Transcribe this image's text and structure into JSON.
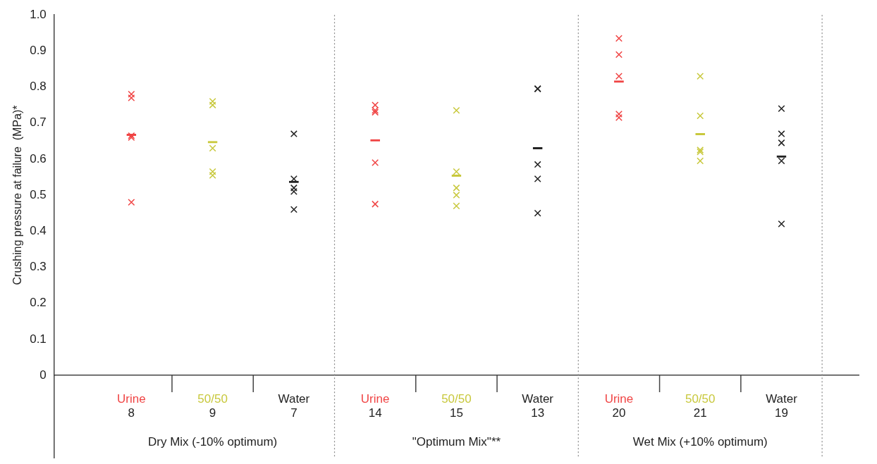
{
  "chart_data": {
    "type": "scatter",
    "ylabel": "Crushing pressure at failure  (MPa)*",
    "categories": [
      "8",
      "9",
      "7",
      "14",
      "15",
      "13",
      "20",
      "21",
      "19"
    ],
    "ylim": [
      0,
      1
    ],
    "yticks": [
      0,
      0.1,
      0.2,
      0.3,
      0.4,
      0.5,
      0.6,
      0.7,
      0.8,
      0.9,
      {
        "value": 1,
        "label": "1.0"
      }
    ],
    "grid": false,
    "annotations": [
      "Dry Mix (-10% optimum)",
      "\"Optimum Mix\"**",
      "Wet Mix (+10% optimum)"
    ],
    "series": [
      {
        "name": "Urine",
        "color": "#f04444",
        "marker": "cross",
        "x": [
          "8",
          "8",
          "8",
          "8",
          "8",
          "14",
          "14",
          "14",
          "14",
          "14",
          "20",
          "20",
          "20",
          "20",
          "20"
        ],
        "values": [
          0.78,
          0.77,
          0.665,
          0.66,
          0.48,
          0.75,
          0.735,
          0.73,
          0.59,
          0.475,
          0.935,
          0.89,
          0.83,
          0.725,
          0.715
        ]
      },
      {
        "name": "50/50",
        "color": "#c8c83c",
        "marker": "cross",
        "x": [
          "9",
          "9",
          "9",
          "9",
          "9",
          "15",
          "15",
          "15",
          "15",
          "15",
          "21",
          "21",
          "21",
          "21",
          "21"
        ],
        "values": [
          0.76,
          0.75,
          0.63,
          0.565,
          0.555,
          0.735,
          0.565,
          0.52,
          0.5,
          0.47,
          0.83,
          0.72,
          0.625,
          0.62,
          0.595
        ]
      },
      {
        "name": "Water",
        "color": "#222222",
        "marker": "cross",
        "x": [
          "7",
          "7",
          "7",
          "7",
          "7",
          "13",
          "13",
          "13",
          "13",
          "13",
          "19",
          "19",
          "19",
          "19",
          "19"
        ],
        "values": [
          0.67,
          0.545,
          0.52,
          0.51,
          0.46,
          0.795,
          0.795,
          0.585,
          0.545,
          0.45,
          0.74,
          0.67,
          0.645,
          0.595,
          0.42
        ]
      },
      {
        "type": "bar",
        "color": "#f04444",
        "x": [
          "8",
          "14",
          "20"
        ],
        "values": [
          0.67,
          0.655,
          0.818
        ]
      },
      {
        "type": "bar",
        "color": "#c8c83c",
        "x": [
          "9",
          "15",
          "21"
        ],
        "values": [
          0.65,
          0.557,
          0.672
        ]
      },
      {
        "type": "bar",
        "color": "#222222",
        "x": [
          "7",
          "13",
          "19"
        ],
        "values": [
          0.54,
          0.633,
          0.61
        ]
      }
    ]
  }
}
